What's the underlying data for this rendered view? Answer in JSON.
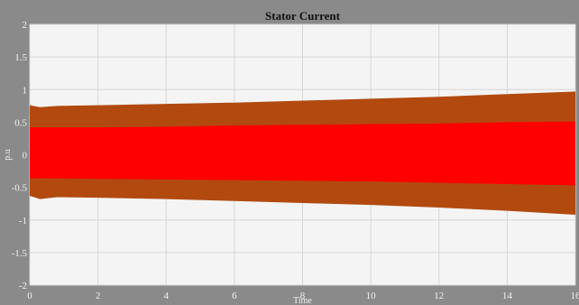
{
  "chart_data": {
    "type": "area",
    "title": "Stator Current",
    "xlabel": "Time",
    "ylabel": "p.u",
    "xlim": [
      0,
      16
    ],
    "ylim": [
      -2,
      2
    ],
    "xticks": [
      "0",
      "2",
      "4",
      "6",
      "8",
      "10",
      "12",
      "14",
      "16"
    ],
    "yticks": [
      "2",
      "1.5",
      "1",
      "0.5",
      "0",
      "-0.5",
      "-1",
      "-1.5",
      "-2"
    ],
    "grid": true,
    "series": [
      {
        "color": "#b24a10",
        "x": [
          0,
          0.3,
          0.8,
          2,
          4,
          6,
          8,
          10,
          12,
          14,
          16
        ],
        "upper": [
          0.76,
          0.73,
          0.75,
          0.76,
          0.78,
          0.8,
          0.83,
          0.86,
          0.89,
          0.93,
          0.97
        ],
        "lower": [
          -0.63,
          -0.68,
          -0.65,
          -0.66,
          -0.68,
          -0.71,
          -0.74,
          -0.77,
          -0.81,
          -0.86,
          -0.92
        ]
      },
      {
        "color": "#ff0000",
        "x": [
          0,
          2,
          4,
          6,
          8,
          10,
          12,
          14,
          16
        ],
        "upper": [
          0.42,
          0.42,
          0.43,
          0.45,
          0.46,
          0.47,
          0.48,
          0.5,
          0.51
        ],
        "lower": [
          -0.36,
          -0.37,
          -0.38,
          -0.39,
          -0.4,
          -0.41,
          -0.43,
          -0.45,
          -0.47
        ]
      }
    ]
  }
}
